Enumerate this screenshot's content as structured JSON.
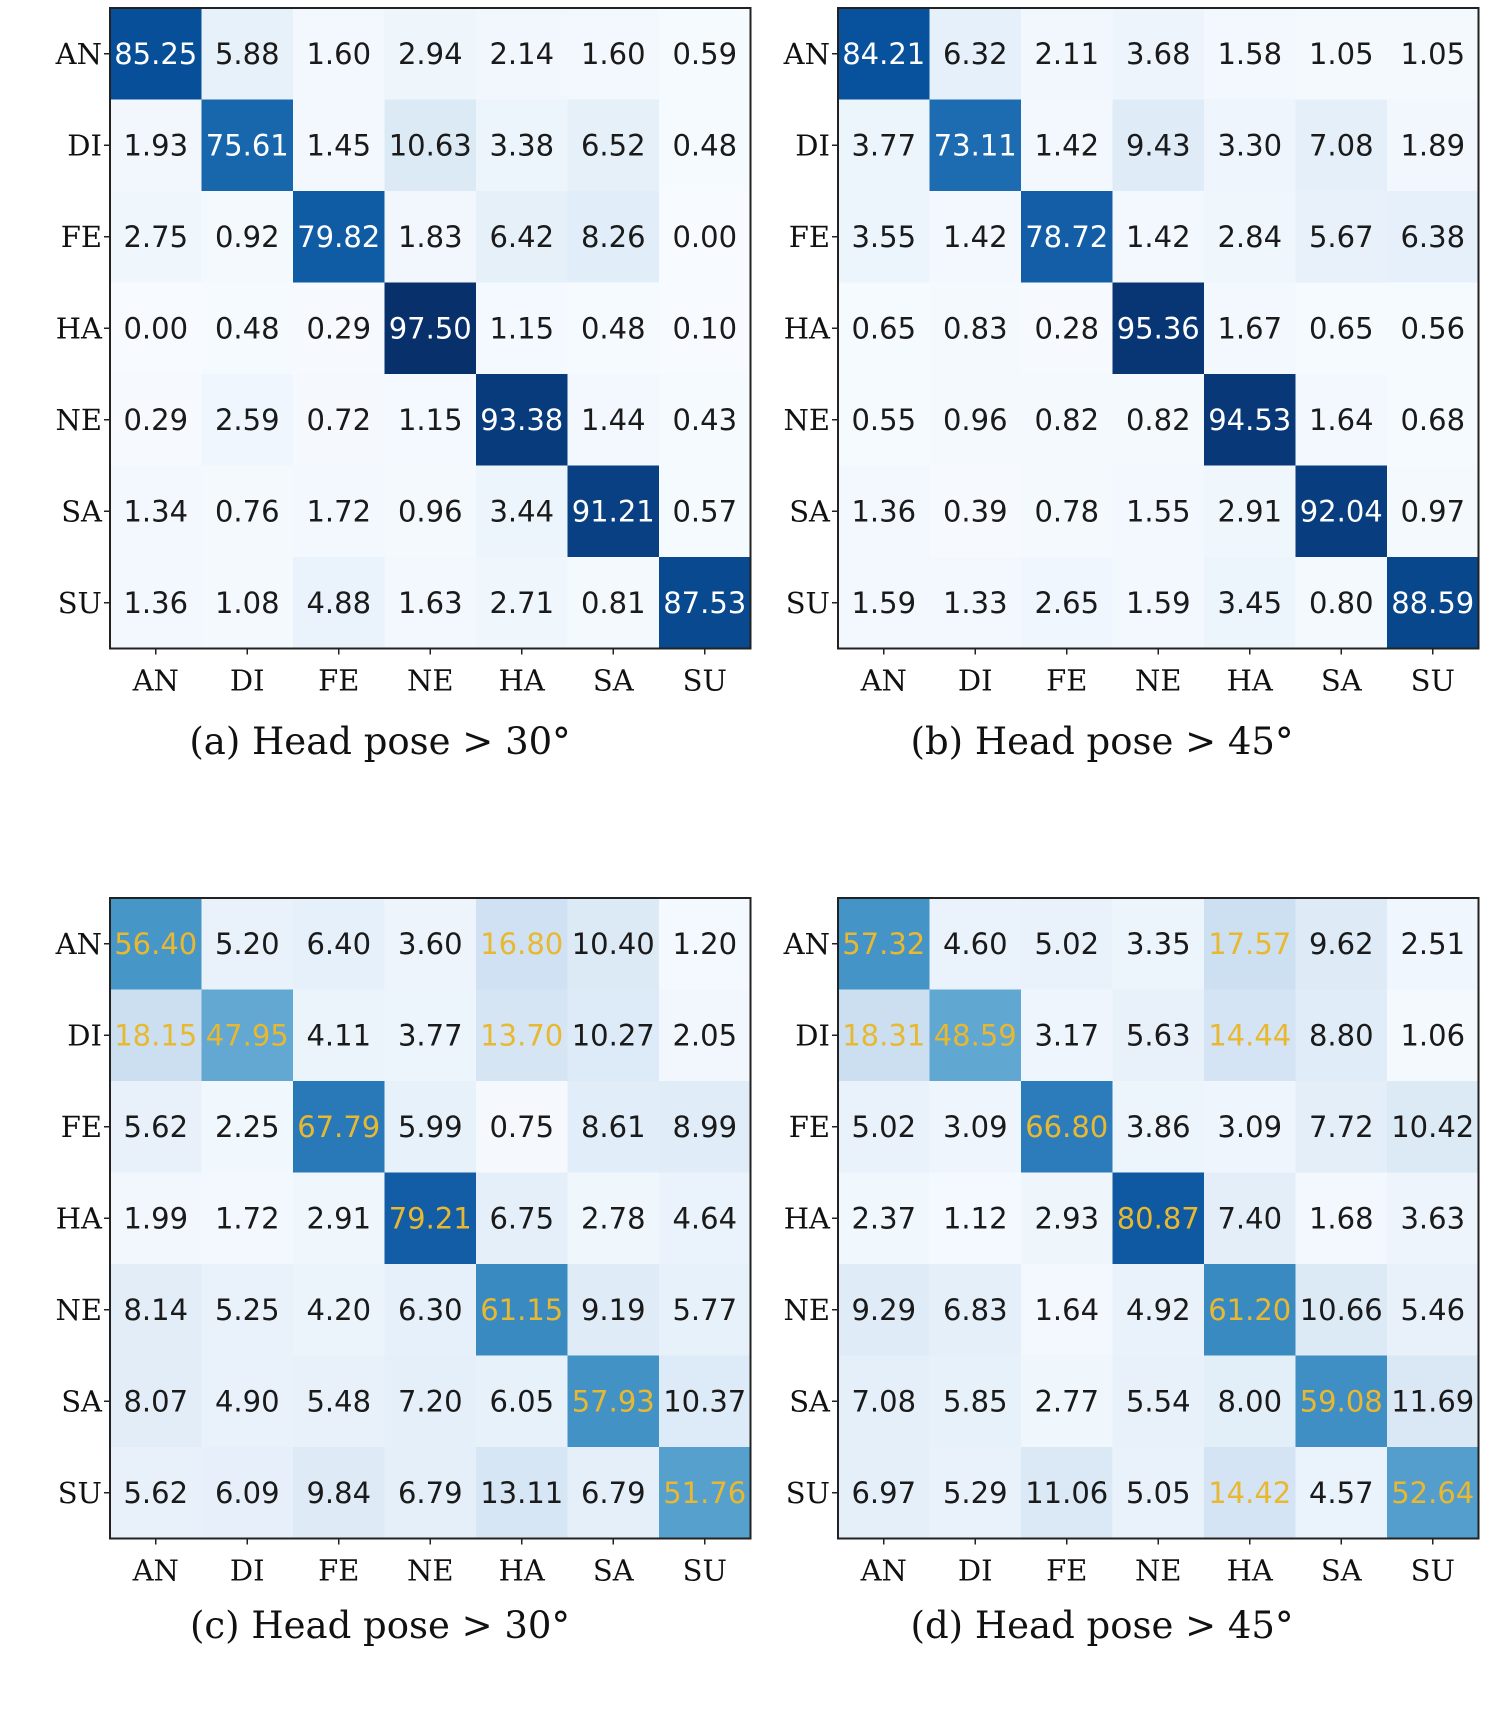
{
  "chart_data": [
    {
      "type": "heatmap",
      "id": "a",
      "title": "(a) Head pose > 30°",
      "rows": [
        "AN",
        "DI",
        "FE",
        "HA",
        "NE",
        "SA",
        "SU"
      ],
      "cols": [
        "AN",
        "DI",
        "FE",
        "NE",
        "HA",
        "SA",
        "SU"
      ],
      "matrix": [
        [
          "85.25",
          "5.88",
          "1.60",
          "2.94",
          "2.14",
          "1.60",
          "0.59"
        ],
        [
          "1.93",
          "75.61",
          "1.45",
          "10.63",
          "3.38",
          "6.52",
          "0.48"
        ],
        [
          "2.75",
          "0.92",
          "79.82",
          "1.83",
          "6.42",
          "8.26",
          "0.00"
        ],
        [
          "0.00",
          "0.48",
          "0.29",
          "97.50",
          "1.15",
          "0.48",
          "0.10"
        ],
        [
          "0.29",
          "2.59",
          "0.72",
          "1.15",
          "93.38",
          "1.44",
          "0.43"
        ],
        [
          "1.34",
          "0.76",
          "1.72",
          "0.96",
          "3.44",
          "91.21",
          "0.57"
        ],
        [
          "1.36",
          "1.08",
          "4.88",
          "1.63",
          "2.71",
          "0.81",
          "87.53"
        ]
      ],
      "highlight": [],
      "value_range": [
        0,
        100
      ]
    },
    {
      "type": "heatmap",
      "id": "b",
      "title": "(b) Head pose > 45°",
      "rows": [
        "AN",
        "DI",
        "FE",
        "HA",
        "NE",
        "SA",
        "SU"
      ],
      "cols": [
        "AN",
        "DI",
        "FE",
        "NE",
        "HA",
        "SA",
        "SU"
      ],
      "matrix": [
        [
          "84.21",
          "6.32",
          "2.11",
          "3.68",
          "1.58",
          "1.05",
          "1.05"
        ],
        [
          "3.77",
          "73.11",
          "1.42",
          "9.43",
          "3.30",
          "7.08",
          "1.89"
        ],
        [
          "3.55",
          "1.42",
          "78.72",
          "1.42",
          "2.84",
          "5.67",
          "6.38"
        ],
        [
          "0.65",
          "0.83",
          "0.28",
          "95.36",
          "1.67",
          "0.65",
          "0.56"
        ],
        [
          "0.55",
          "0.96",
          "0.82",
          "0.82",
          "94.53",
          "1.64",
          "0.68"
        ],
        [
          "1.36",
          "0.39",
          "0.78",
          "1.55",
          "2.91",
          "92.04",
          "0.97"
        ],
        [
          "1.59",
          "1.33",
          "2.65",
          "1.59",
          "3.45",
          "0.80",
          "88.59"
        ]
      ],
      "highlight": [],
      "value_range": [
        0,
        100
      ]
    },
    {
      "type": "heatmap",
      "id": "c",
      "title": "(c) Head pose > 30°",
      "rows": [
        "AN",
        "DI",
        "FE",
        "HA",
        "NE",
        "SA",
        "SU"
      ],
      "cols": [
        "AN",
        "DI",
        "FE",
        "NE",
        "HA",
        "SA",
        "SU"
      ],
      "matrix": [
        [
          "56.40",
          "5.20",
          "6.40",
          "3.60",
          "16.80",
          "10.40",
          "1.20"
        ],
        [
          "18.15",
          "47.95",
          "4.11",
          "3.77",
          "13.70",
          "10.27",
          "2.05"
        ],
        [
          "5.62",
          "2.25",
          "67.79",
          "5.99",
          "0.75",
          "8.61",
          "8.99"
        ],
        [
          "1.99",
          "1.72",
          "2.91",
          "79.21",
          "6.75",
          "2.78",
          "4.64"
        ],
        [
          "8.14",
          "5.25",
          "4.20",
          "6.30",
          "61.15",
          "9.19",
          "5.77"
        ],
        [
          "8.07",
          "4.90",
          "5.48",
          "7.20",
          "6.05",
          "57.93",
          "10.37"
        ],
        [
          "5.62",
          "6.09",
          "9.84",
          "6.79",
          "13.11",
          "6.79",
          "51.76"
        ]
      ],
      "highlight": [
        [
          0,
          0
        ],
        [
          0,
          4
        ],
        [
          1,
          0
        ],
        [
          1,
          1
        ],
        [
          1,
          4
        ],
        [
          2,
          2
        ],
        [
          3,
          3
        ],
        [
          4,
          4
        ],
        [
          5,
          5
        ],
        [
          6,
          6
        ]
      ],
      "highlight_color": "#e8b830",
      "value_range": [
        0,
        100
      ]
    },
    {
      "type": "heatmap",
      "id": "d",
      "title": "(d) Head pose > 45°",
      "rows": [
        "AN",
        "DI",
        "FE",
        "HA",
        "NE",
        "SA",
        "SU"
      ],
      "cols": [
        "AN",
        "DI",
        "FE",
        "NE",
        "HA",
        "SA",
        "SU"
      ],
      "matrix": [
        [
          "57.32",
          "4.60",
          "5.02",
          "3.35",
          "17.57",
          "9.62",
          "2.51"
        ],
        [
          "18.31",
          "48.59",
          "3.17",
          "5.63",
          "14.44",
          "8.80",
          "1.06"
        ],
        [
          "5.02",
          "3.09",
          "66.80",
          "3.86",
          "3.09",
          "7.72",
          "10.42"
        ],
        [
          "2.37",
          "1.12",
          "2.93",
          "80.87",
          "7.40",
          "1.68",
          "3.63"
        ],
        [
          "9.29",
          "6.83",
          "1.64",
          "4.92",
          "61.20",
          "10.66",
          "5.46"
        ],
        [
          "7.08",
          "5.85",
          "2.77",
          "5.54",
          "8.00",
          "59.08",
          "11.69"
        ],
        [
          "6.97",
          "5.29",
          "11.06",
          "5.05",
          "14.42",
          "4.57",
          "52.64"
        ]
      ],
      "highlight": [
        [
          0,
          0
        ],
        [
          0,
          4
        ],
        [
          1,
          0
        ],
        [
          1,
          1
        ],
        [
          1,
          4
        ],
        [
          2,
          2
        ],
        [
          3,
          3
        ],
        [
          4,
          4
        ],
        [
          5,
          5
        ],
        [
          6,
          6
        ],
        [
          6,
          4
        ]
      ],
      "highlight_color": "#e8b830",
      "value_range": [
        0,
        100
      ]
    }
  ]
}
